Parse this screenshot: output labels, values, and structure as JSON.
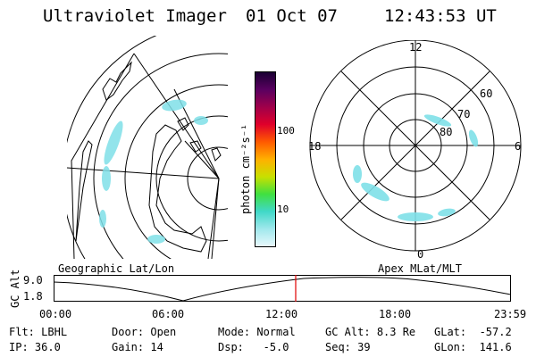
{
  "header": {
    "title": "Ultraviolet Imager",
    "date": "01 Oct 07",
    "time": "12:43:53 UT"
  },
  "geo_panel": {
    "label": "Geographic Lat/Lon"
  },
  "colorbar": {
    "unit_label": "photon cm⁻²s⁻¹",
    "ticks": [
      "100",
      "10"
    ],
    "colors": [
      "#1a0033",
      "#5a0060",
      "#a0004a",
      "#e0002a",
      "#ff5a00",
      "#ffb000",
      "#c8e000",
      "#40e040",
      "#40d8c8",
      "#a0e8ec",
      "#e8f8fc"
    ]
  },
  "polar_panel": {
    "label": "Apex MLat/MLT",
    "mlt_labels": {
      "top": "12",
      "left": "18",
      "right": "6",
      "bottom": "0"
    },
    "lat_labels": [
      "60",
      "70",
      "80"
    ]
  },
  "altitude_strip": {
    "axis_title": "GC Alt",
    "y_ticks": [
      "9.0",
      "1.8"
    ],
    "x_ticks": [
      "00:00",
      "06:00",
      "12:00",
      "18:00",
      "23:59"
    ],
    "marker_color": "#e00000"
  },
  "status": {
    "row1": [
      {
        "label": "Flt:",
        "value": "LBHL"
      },
      {
        "label": "Door:",
        "value": "Open"
      },
      {
        "label": "Mode:",
        "value": "Normal"
      },
      {
        "label": "GC Alt:",
        "value": "8.3 Re"
      },
      {
        "label": "GLat:",
        "value": "-57.2"
      }
    ],
    "row2": [
      {
        "label": "IP:",
        "value": "36.0"
      },
      {
        "label": "Gain:",
        "value": "14"
      },
      {
        "label": "Dsp:",
        "value": "-5.0"
      },
      {
        "label": "Seq:",
        "value": "39"
      },
      {
        "label": "GLon:",
        "value": "141.6"
      }
    ]
  },
  "colors": {
    "aurora": "#7fe0e8",
    "aurora_dark": "#40c8d8",
    "line": "#000000"
  }
}
